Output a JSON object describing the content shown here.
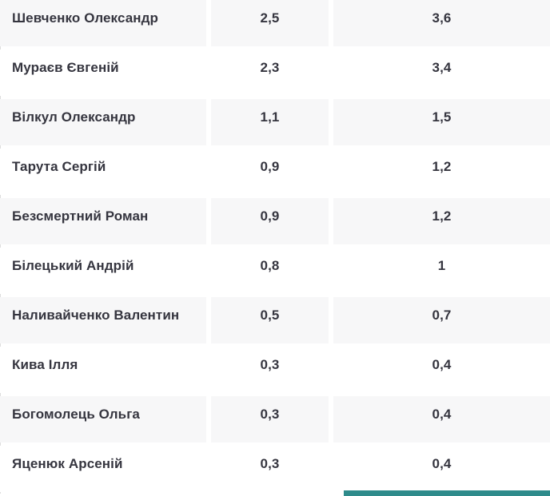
{
  "colors": {
    "row_alt": "#f7f7f8",
    "row_base": "#ffffff",
    "text": "#35353f",
    "left_border": "#dddddd",
    "accent_bar": "#2e8b8b"
  },
  "table": {
    "rows": [
      {
        "name": "Шевченко Олександр",
        "v1": "2,5",
        "v2": "3,6"
      },
      {
        "name": "Мураєв Євгеній",
        "v1": "2,3",
        "v2": "3,4"
      },
      {
        "name": "Вілкул Олександр",
        "v1": "1,1",
        "v2": "1,5"
      },
      {
        "name": "Тарута Сергій",
        "v1": "0,9",
        "v2": "1,2"
      },
      {
        "name": "Безсмертний Роман",
        "v1": "0,9",
        "v2": "1,2"
      },
      {
        "name": "Білецький Андрій",
        "v1": "0,8",
        "v2": "1"
      },
      {
        "name": "Наливайченко Валентин",
        "v1": "0,5",
        "v2": "0,7"
      },
      {
        "name": "Кива Ілля",
        "v1": "0,3",
        "v2": "0,4"
      },
      {
        "name": "Богомолець Ольга",
        "v1": "0,3",
        "v2": "0,4"
      },
      {
        "name": "Яценюк Арсеній",
        "v1": "0,3",
        "v2": "0,4"
      }
    ]
  },
  "chart_data": {
    "type": "table",
    "categories": [
      "Шевченко Олександр",
      "Мураєв Євгеній",
      "Вілкул Олександр",
      "Тарута Сергій",
      "Безсмертний Роман",
      "Білецький Андрій",
      "Наливайченко Валентин",
      "Кива Ілля",
      "Богомолець Ольга",
      "Яценюк Арсеній"
    ],
    "series": [
      {
        "name": "column-2",
        "values": [
          2.5,
          2.3,
          1.1,
          0.9,
          0.9,
          0.8,
          0.5,
          0.3,
          0.3,
          0.3
        ]
      },
      {
        "name": "column-3",
        "values": [
          3.6,
          3.4,
          1.5,
          1.2,
          1.2,
          1.0,
          0.7,
          0.4,
          0.4,
          0.4
        ]
      }
    ],
    "title": "",
    "xlabel": "",
    "ylabel": "",
    "decimal_separator": ","
  }
}
